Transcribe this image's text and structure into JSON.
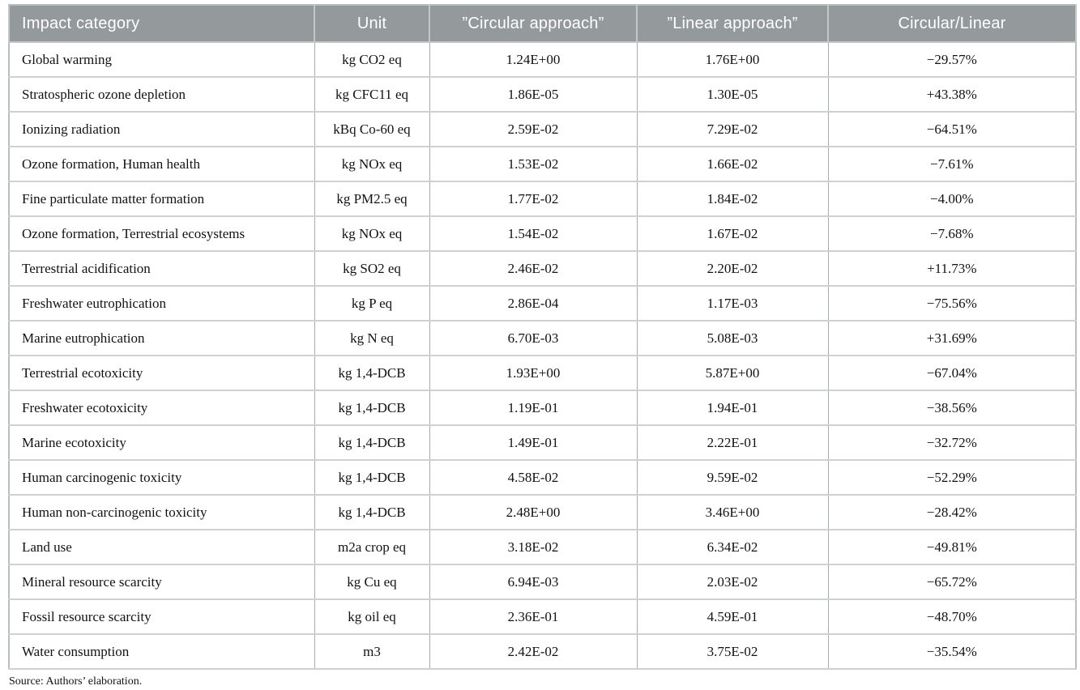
{
  "table": {
    "headers": [
      "Impact category",
      "Unit",
      "”Circular approach”",
      "”Linear approach”",
      "Circular/Linear"
    ],
    "rows": [
      {
        "category": "Global warming",
        "unit": "kg CO2 eq",
        "circular": "1.24E+00",
        "linear": "1.76E+00",
        "ratio": "−29.57%"
      },
      {
        "category": "Stratospheric ozone depletion",
        "unit": "kg CFC11 eq",
        "circular": "1.86E-05",
        "linear": "1.30E-05",
        "ratio": "+43.38%"
      },
      {
        "category": "Ionizing radiation",
        "unit": "kBq Co-60 eq",
        "circular": "2.59E-02",
        "linear": "7.29E-02",
        "ratio": "−64.51%"
      },
      {
        "category": "Ozone formation, Human health",
        "unit": "kg NOx eq",
        "circular": "1.53E-02",
        "linear": "1.66E-02",
        "ratio": "−7.61%"
      },
      {
        "category": "Fine particulate matter formation",
        "unit": "kg PM2.5 eq",
        "circular": "1.77E-02",
        "linear": "1.84E-02",
        "ratio": "−4.00%"
      },
      {
        "category": "Ozone formation, Terrestrial ecosystems",
        "unit": "kg NOx eq",
        "circular": "1.54E-02",
        "linear": "1.67E-02",
        "ratio": "−7.68%"
      },
      {
        "category": "Terrestrial acidification",
        "unit": "kg SO2 eq",
        "circular": "2.46E-02",
        "linear": "2.20E-02",
        "ratio": "+11.73%"
      },
      {
        "category": "Freshwater eutrophication",
        "unit": "kg P eq",
        "circular": "2.86E-04",
        "linear": "1.17E-03",
        "ratio": "−75.56%"
      },
      {
        "category": "Marine eutrophication",
        "unit": "kg N eq",
        "circular": "6.70E-03",
        "linear": "5.08E-03",
        "ratio": "+31.69%"
      },
      {
        "category": "Terrestrial ecotoxicity",
        "unit": "kg 1,4-DCB",
        "circular": "1.93E+00",
        "linear": "5.87E+00",
        "ratio": "−67.04%"
      },
      {
        "category": "Freshwater ecotoxicity",
        "unit": "kg 1,4-DCB",
        "circular": "1.19E-01",
        "linear": "1.94E-01",
        "ratio": "−38.56%"
      },
      {
        "category": "Marine ecotoxicity",
        "unit": "kg 1,4-DCB",
        "circular": "1.49E-01",
        "linear": "2.22E-01",
        "ratio": "−32.72%"
      },
      {
        "category": "Human carcinogenic toxicity",
        "unit": "kg 1,4-DCB",
        "circular": "4.58E-02",
        "linear": "9.59E-02",
        "ratio": "−52.29%"
      },
      {
        "category": "Human non-carcinogenic toxicity",
        "unit": "kg 1,4-DCB",
        "circular": "2.48E+00",
        "linear": "3.46E+00",
        "ratio": "−28.42%"
      },
      {
        "category": "Land use",
        "unit": "m2a crop eq",
        "circular": "3.18E-02",
        "linear": "6.34E-02",
        "ratio": "−49.81%"
      },
      {
        "category": "Mineral resource scarcity",
        "unit": "kg Cu eq",
        "circular": "6.94E-03",
        "linear": "2.03E-02",
        "ratio": "−65.72%"
      },
      {
        "category": "Fossil resource scarcity",
        "unit": "kg oil eq",
        "circular": "2.36E-01",
        "linear": "4.59E-01",
        "ratio": "−48.70%"
      },
      {
        "category": "Water consumption",
        "unit": "m3",
        "circular": "2.42E-02",
        "linear": "3.75E-02",
        "ratio": "−35.54%"
      }
    ],
    "source_note": "Source: Authors’ elaboration.",
    "colors": {
      "header_background": "#94999b",
      "header_text": "#ffffff",
      "row_separator": "#cdd1d0",
      "column_separator": "#a6abab",
      "outer_border": "#b7bebc",
      "body_text": "#121212"
    }
  }
}
